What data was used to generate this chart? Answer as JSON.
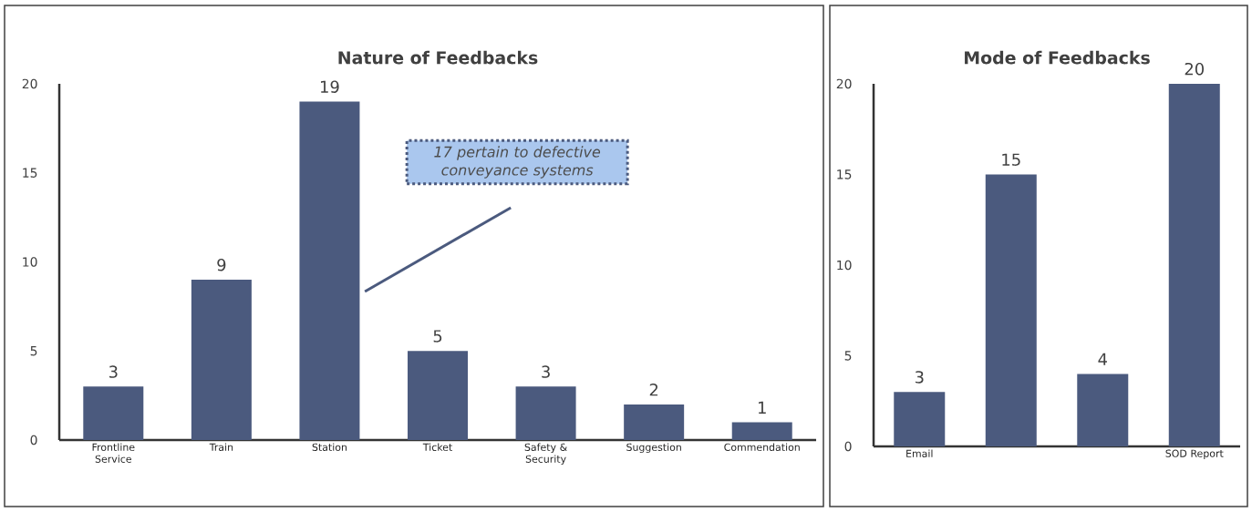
{
  "chart_data": [
    {
      "type": "bar",
      "title": "Nature of Feedbacks",
      "categories": [
        "Frontline Service",
        "Train",
        "Station",
        "Ticket",
        "Safety & Security",
        "Suggestion",
        "Commendation"
      ],
      "values": [
        3,
        9,
        19,
        5,
        3,
        2,
        1
      ],
      "color": "#4b5a7e",
      "ylim": [
        0,
        20
      ],
      "yticks": [
        0,
        5,
        10,
        15,
        20
      ],
      "data_labels": true,
      "annotations": [
        "*17 pertain to defective conveyance systems*"
      ]
    },
    {
      "type": "bar",
      "title": "Mode of Feedbacks",
      "categories": [
        "Email",
        null,
        null,
        "SOD Report"
      ],
      "values": [
        3,
        15,
        4,
        20
      ],
      "color": "#4b5a7e",
      "ylim": [
        0,
        20
      ],
      "yticks": [
        0,
        5,
        10,
        15,
        20
      ],
      "data_labels": true
    }
  ]
}
